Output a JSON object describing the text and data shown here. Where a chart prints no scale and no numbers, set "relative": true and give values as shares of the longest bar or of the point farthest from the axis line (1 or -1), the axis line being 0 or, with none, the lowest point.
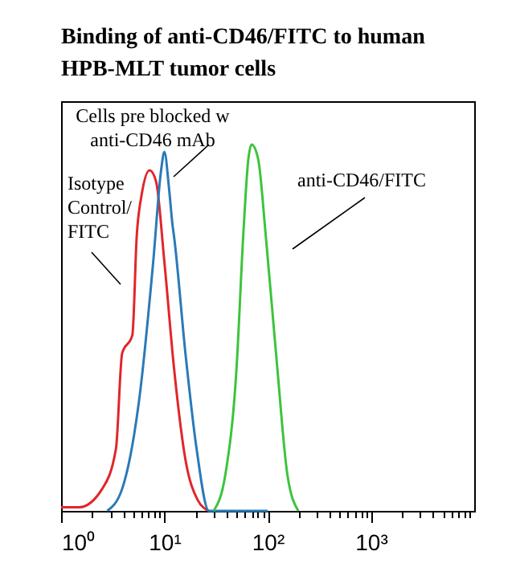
{
  "chart_data": {
    "type": "line",
    "title": "Binding of anti-CD46/FITC to human\nHPB-MLT tumor cells",
    "relative": true,
    "log": "x",
    "grid": false,
    "marker": "none",
    "line_style": "solid",
    "xlim": [
      1,
      10000
    ],
    "xticks": [
      {
        "value": 1,
        "label": "10⁰"
      },
      {
        "value": 2,
        "label": null
      },
      {
        "value": 3,
        "label": null
      },
      {
        "value": 4,
        "label": null
      },
      {
        "value": 5,
        "label": null
      },
      {
        "value": 6,
        "label": null
      },
      {
        "value": 7,
        "label": null
      },
      {
        "value": 8,
        "label": null
      },
      {
        "value": 9,
        "label": null
      },
      {
        "value": 10,
        "label": "10¹"
      },
      {
        "value": 20,
        "label": null
      },
      {
        "value": 30,
        "label": null
      },
      {
        "value": 40,
        "label": null
      },
      {
        "value": 50,
        "label": null
      },
      {
        "value": 60,
        "label": null
      },
      {
        "value": 70,
        "label": null
      },
      {
        "value": 80,
        "label": null
      },
      {
        "value": 90,
        "label": null
      },
      {
        "value": 100,
        "label": "10²"
      },
      {
        "value": 200,
        "label": null
      },
      {
        "value": 300,
        "label": null
      },
      {
        "value": 400,
        "label": null
      },
      {
        "value": 500,
        "label": null
      },
      {
        "value": 600,
        "label": null
      },
      {
        "value": 700,
        "label": null
      },
      {
        "value": 800,
        "label": null
      },
      {
        "value": 900,
        "label": null
      },
      {
        "value": 1000,
        "label": "10³"
      },
      {
        "value": 2000,
        "label": null
      },
      {
        "value": 3000,
        "label": null
      },
      {
        "value": 4000,
        "label": null
      },
      {
        "value": 5000,
        "label": null
      },
      {
        "value": 6000,
        "label": null
      },
      {
        "value": 7000,
        "label": null
      },
      {
        "value": 8000,
        "label": null
      },
      {
        "value": 9000,
        "label": null
      }
    ],
    "series": [
      {
        "color": "#e0262b",
        "x": [
          1,
          1.5,
          2.5,
          3.4,
          3.9,
          4.9,
          5.4,
          6.0,
          7.2,
          8.3,
          10,
          12.4,
          16,
          21,
          27
        ],
        "values": [
          0.01,
          0.01,
          0.06,
          0.17,
          0.43,
          0.48,
          0.75,
          0.86,
          0.93,
          0.9,
          0.68,
          0.39,
          0.14,
          0.03,
          0
        ]
      },
      {
        "color": "#2a7ab8",
        "x": [
          2.8,
          3.9,
          5.8,
          7.8,
          9.3,
          10,
          11.1,
          12,
          12.4,
          16,
          20.5,
          27,
          100
        ],
        "values": [
          0,
          0.06,
          0.32,
          0.68,
          0.93,
          0.98,
          0.88,
          0.78,
          0.75,
          0.43,
          0.17,
          0,
          0
        ]
      },
      {
        "color": "#3cc43c",
        "x": [
          30,
          39,
          50,
          58,
          65,
          70,
          81,
          96,
          124,
          155,
          198
        ],
        "values": [
          0,
          0.1,
          0.39,
          0.75,
          0.96,
          1,
          0.96,
          0.75,
          0.39,
          0.1,
          0
        ]
      }
    ],
    "annotations": [
      "Cells pre blocked w\nanti-CD46 mAb",
      "Isotype\nControl/\nFITC",
      "anti-CD46/FITC"
    ]
  }
}
